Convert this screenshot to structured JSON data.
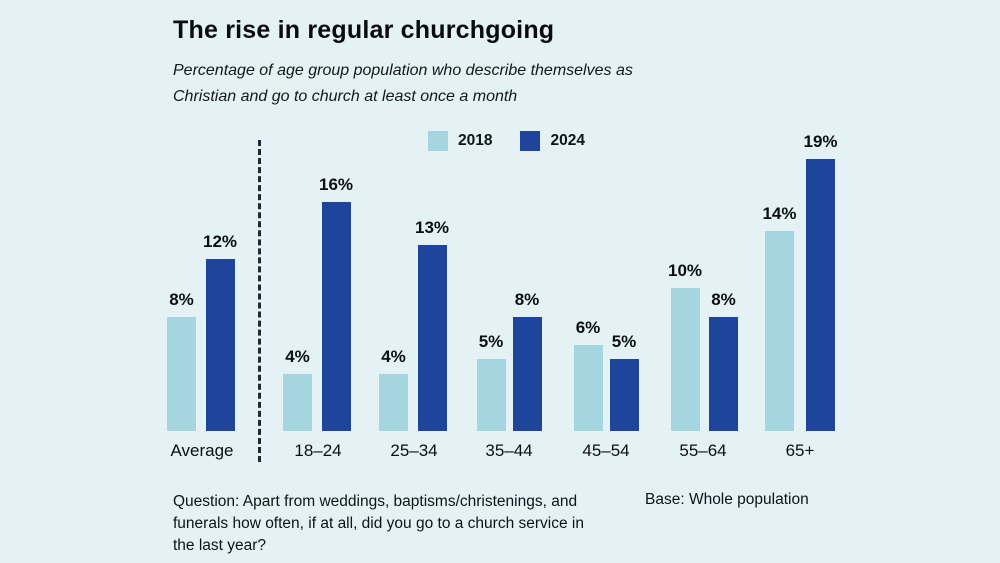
{
  "header": {
    "title": "The rise in regular churchgoing",
    "subtitle": "Percentage of age group population who describe themselves as Christian and go to church at least once a month"
  },
  "legend": {
    "items": [
      {
        "label": "2018",
        "color": "#a5d5de"
      },
      {
        "label": "2024",
        "color": "#1f449c"
      }
    ]
  },
  "chart_data": {
    "type": "bar",
    "title": "The rise in regular churchgoing",
    "subtitle": "Percentage of age group population who describe themselves as Christian and go to church at least once a month",
    "categories": [
      "Average",
      "18–24",
      "25–34",
      "35–44",
      "45–54",
      "55–64",
      "65+"
    ],
    "series": [
      {
        "name": "2018",
        "color": "#a5d5de",
        "values": [
          8,
          4,
          4,
          5,
          6,
          10,
          14
        ]
      },
      {
        "name": "2024",
        "color": "#1f449c",
        "values": [
          12,
          16,
          13,
          8,
          5,
          8,
          19
        ]
      }
    ],
    "value_suffix": "%",
    "ylim": [
      0,
      19
    ],
    "grid": false,
    "legend_position": "top-center",
    "separator_after_category": "Average",
    "value_labels_shown": true
  },
  "footer": {
    "question": "Question: Apart from weddings, baptisms/christenings, and funerals how often, if at all, did you go to a church service in the last year?",
    "base_note": "Base: Whole population"
  },
  "colors": {
    "background": "#e4f1f5",
    "separator": "#1c2b33",
    "text": "#0e1419"
  }
}
